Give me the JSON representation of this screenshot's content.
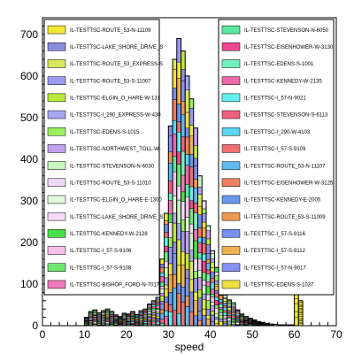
{
  "chart_data": {
    "type": "bar",
    "stacked": true,
    "xlabel": "speed",
    "ylabel": "",
    "xlim": [
      0,
      70
    ],
    "ylim": [
      0,
      740
    ],
    "bin_width": 1,
    "x_ticks": [
      0,
      10,
      20,
      30,
      40,
      50,
      60,
      70
    ],
    "y_ticks": [
      0,
      100,
      200,
      300,
      400,
      500,
      600,
      700
    ],
    "grid": false,
    "legend_placement": "inside-top, two columns",
    "histogram_totals": [
      {
        "x": 10,
        "value": 20
      },
      {
        "x": 11,
        "value": 34
      },
      {
        "x": 12,
        "value": 38
      },
      {
        "x": 13,
        "value": 31
      },
      {
        "x": 14,
        "value": 36
      },
      {
        "x": 15,
        "value": 40
      },
      {
        "x": 16,
        "value": 34
      },
      {
        "x": 17,
        "value": 26
      },
      {
        "x": 18,
        "value": 22
      },
      {
        "x": 19,
        "value": 30
      },
      {
        "x": 20,
        "value": 28
      },
      {
        "x": 21,
        "value": 34
      },
      {
        "x": 22,
        "value": 27
      },
      {
        "x": 23,
        "value": 36
      },
      {
        "x": 24,
        "value": 40
      },
      {
        "x": 25,
        "value": 52
      },
      {
        "x": 26,
        "value": 60
      },
      {
        "x": 27,
        "value": 68
      },
      {
        "x": 28,
        "value": 160
      },
      {
        "x": 29,
        "value": 270
      },
      {
        "x": 30,
        "value": 480
      },
      {
        "x": 31,
        "value": 640
      },
      {
        "x": 32,
        "value": 690
      },
      {
        "x": 33,
        "value": 660
      },
      {
        "x": 34,
        "value": 600
      },
      {
        "x": 35,
        "value": 545
      },
      {
        "x": 36,
        "value": 475
      },
      {
        "x": 37,
        "value": 360
      },
      {
        "x": 38,
        "value": 300
      },
      {
        "x": 39,
        "value": 240
      },
      {
        "x": 40,
        "value": 180
      },
      {
        "x": 41,
        "value": 140
      },
      {
        "x": 42,
        "value": 115
      },
      {
        "x": 43,
        "value": 85
      },
      {
        "x": 44,
        "value": 62
      },
      {
        "x": 45,
        "value": 55
      },
      {
        "x": 46,
        "value": 38
      },
      {
        "x": 47,
        "value": 28
      },
      {
        "x": 48,
        "value": 22
      },
      {
        "x": 49,
        "value": 18
      },
      {
        "x": 50,
        "value": 14
      },
      {
        "x": 51,
        "value": 10
      },
      {
        "x": 52,
        "value": 8
      },
      {
        "x": 53,
        "value": 5
      },
      {
        "x": 54,
        "value": 4
      },
      {
        "x": 55,
        "value": 3
      },
      {
        "x": 56,
        "value": 2
      },
      {
        "x": 57,
        "value": 2
      },
      {
        "x": 58,
        "value": 2
      },
      {
        "x": 59,
        "value": 2
      },
      {
        "x": 60,
        "value": 240
      },
      {
        "x": 61,
        "value": 60
      }
    ],
    "series": [
      {
        "name": "IL-TESTTSC-ROUTE_53-N-11109",
        "color": "#f2e832"
      },
      {
        "name": "IL-TESTTSC-LAKE_SHORE_DRIVE_S",
        "color": "#8c8ce0"
      },
      {
        "name": "IL-TESTTSC-ROUTE_53_EXPRESS-S",
        "color": "#d8e85a"
      },
      {
        "name": "IL-TESTTSC-ROUTE_53-S-11007",
        "color": "#9a9af0"
      },
      {
        "name": "IL-TESTTSC-ELGIN_O_HARE-W-131",
        "color": "#b8e838"
      },
      {
        "name": "IL-TESTTSC-I_290_EXPRESS-W-430",
        "color": "#a6a6f2"
      },
      {
        "name": "IL-TESTTSC-EDENS-S-1015",
        "color": "#9cf060"
      },
      {
        "name": "IL-TESTTSC-NORTHWEST_TOLL-W-",
        "color": "#c4a0f0"
      },
      {
        "name": "IL-TESTTSC-STEVENSON-N-6030",
        "color": "#c8f5c0"
      },
      {
        "name": "IL-TESTTSC-ROUTE_53-S-11010",
        "color": "#f0d8f8"
      },
      {
        "name": "IL-TESTTSC-ELGIN_O_HARE-E-1300",
        "color": "#e0f8d8"
      },
      {
        "name": "IL-TESTTSC-LAKE_SHORE_DRIVE_S",
        "color": "#f8d8f8"
      },
      {
        "name": "IL-TESTTSC-KENNEDY-W-2128",
        "color": "#48e048"
      },
      {
        "name": "IL-TESTTSC-I_57-S-9106",
        "color": "#f8c0e8"
      },
      {
        "name": "IL-TESTTSC-I_57-S-9108",
        "color": "#70e870"
      },
      {
        "name": "IL-TESTTSC-BISHOP_FORD-N-7017",
        "color": "#f078b8"
      },
      {
        "name": "IL-TESTTSC-STEVENSON-N-6050",
        "color": "#58e8a0"
      },
      {
        "name": "IL-TESTTSC-EISENHOWER-W-3130",
        "color": "#f04890"
      },
      {
        "name": "IL-TESTTSC-EDENS-S-1001",
        "color": "#70f0c0"
      },
      {
        "name": "IL-TESTTSC-KENNEDY-W-2135",
        "color": "#f068a8"
      },
      {
        "name": "IL-TESTTSC-I_57-N-9021",
        "color": "#60f0f0"
      },
      {
        "name": "IL-TESTTSC-STEVENSON-S-6113",
        "color": "#f06080"
      },
      {
        "name": "IL-TESTTSC-I_290-W-4103",
        "color": "#58d8f0"
      },
      {
        "name": "IL-TESTTSC-I_57-S-9109",
        "color": "#f07070"
      },
      {
        "name": "IL-TESTTSC-ROUTE_53-N-11107",
        "color": "#60b8f0"
      },
      {
        "name": "IL-TESTTSC-EISENHOWER-W-3125",
        "color": "#f08060"
      },
      {
        "name": "IL-TESTTSC-KENNEDY-E-2005",
        "color": "#6898f0"
      },
      {
        "name": "IL-TESTTSC-ROUTE_53-S-11009",
        "color": "#f09850"
      },
      {
        "name": "IL-TESTTSC-I_57-S-9116",
        "color": "#7890f0"
      },
      {
        "name": "IL-TESTTSC-I_57-S-9112",
        "color": "#f0b050"
      },
      {
        "name": "IL-TESTTSC-I_57-N-9017",
        "color": "#8890f0"
      },
      {
        "name": "IL-TESTTSC-EDENS-S-1037",
        "color": "#f0e040"
      }
    ]
  }
}
